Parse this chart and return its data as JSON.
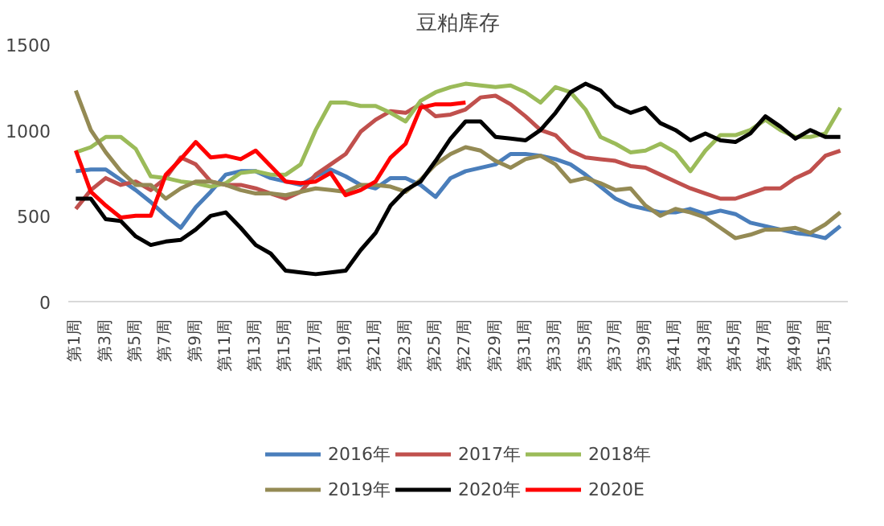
{
  "chart_data": {
    "type": "line",
    "title": "豆粕库存",
    "categories": [
      "第1周",
      null,
      "第3周",
      null,
      "第5周",
      null,
      "第7周",
      null,
      "第9周",
      null,
      "第11周",
      null,
      "第13周",
      null,
      "第15周",
      null,
      "第17周",
      null,
      "第19周",
      null,
      "第21周",
      null,
      "第23周",
      null,
      "第25周",
      null,
      "第27周",
      null,
      "第29周",
      null,
      "第31周",
      null,
      "第33周",
      null,
      "第35周",
      null,
      "第37周",
      null,
      "第39周",
      null,
      "第41周",
      null,
      "第43周",
      null,
      "第45周",
      null,
      "第47周",
      null,
      "第49周",
      null,
      "第51周",
      null
    ],
    "ylim": [
      0,
      1500
    ],
    "yticks": [
      0,
      500,
      1000,
      1500
    ],
    "grid": false,
    "legend": "bottom",
    "marker": "none",
    "line_style": "solid",
    "series": [
      {
        "name": "2016年",
        "color": "#4a7ebb",
        "values": [
          760,
          770,
          770,
          710,
          650,
          580,
          500,
          430,
          550,
          640,
          740,
          760,
          760,
          720,
          700,
          680,
          730,
          770,
          730,
          680,
          660,
          720,
          720,
          680,
          610,
          720,
          760,
          780,
          800,
          860,
          860,
          850,
          830,
          800,
          740,
          670,
          600,
          560,
          540,
          520,
          520,
          540,
          510,
          530,
          510,
          460,
          440,
          420,
          400,
          390,
          370,
          440
        ]
      },
      {
        "name": "2017年",
        "color": "#c0504d",
        "values": [
          540,
          650,
          720,
          680,
          700,
          650,
          720,
          840,
          800,
          700,
          680,
          680,
          660,
          630,
          600,
          640,
          740,
          800,
          860,
          990,
          1060,
          1110,
          1100,
          1150,
          1080,
          1090,
          1120,
          1190,
          1200,
          1150,
          1080,
          1000,
          970,
          880,
          840,
          830,
          820,
          790,
          780,
          740,
          700,
          660,
          630,
          600,
          600,
          630,
          660,
          660,
          720,
          760,
          850,
          880
        ]
      },
      {
        "name": "2018年",
        "color": "#9bbb59",
        "values": [
          870,
          900,
          960,
          960,
          890,
          730,
          720,
          700,
          690,
          670,
          690,
          750,
          760,
          740,
          740,
          800,
          1000,
          1160,
          1160,
          1140,
          1140,
          1100,
          1050,
          1170,
          1220,
          1250,
          1270,
          1260,
          1250,
          1260,
          1220,
          1160,
          1250,
          1220,
          1120,
          960,
          920,
          870,
          880,
          920,
          870,
          760,
          880,
          970,
          970,
          1000,
          1060,
          1000,
          960,
          960,
          980,
          1130
        ]
      },
      {
        "name": "2019年",
        "color": "#948a54",
        "values": [
          1230,
          1000,
          870,
          760,
          680,
          680,
          600,
          660,
          700,
          700,
          680,
          650,
          630,
          630,
          620,
          640,
          660,
          650,
          640,
          680,
          680,
          670,
          640,
          710,
          800,
          860,
          900,
          880,
          820,
          780,
          830,
          850,
          800,
          700,
          720,
          690,
          650,
          660,
          560,
          500,
          540,
          520,
          490,
          430,
          370,
          390,
          420,
          420,
          430,
          400,
          450,
          520
        ]
      },
      {
        "name": "2020年",
        "color": "#000000",
        "values": [
          600,
          600,
          480,
          470,
          380,
          330,
          350,
          360,
          420,
          500,
          520,
          430,
          330,
          280,
          180,
          170,
          160,
          170,
          180,
          300,
          400,
          560,
          650,
          700,
          820,
          950,
          1050,
          1050,
          960,
          950,
          940,
          1000,
          1100,
          1220,
          1270,
          1230,
          1140,
          1100,
          1130,
          1040,
          1000,
          940,
          980,
          940,
          930,
          980,
          1080,
          1020,
          950,
          1000,
          960,
          960
        ]
      },
      {
        "name": "2020E",
        "color": "#ff0000",
        "values": [
          880,
          640,
          560,
          490,
          500,
          500,
          740,
          830,
          930,
          840,
          850,
          830,
          880,
          790,
          700,
          690,
          700,
          750,
          620,
          650,
          700,
          840,
          920,
          1130,
          1150,
          1150,
          1160,
          null,
          null,
          null,
          null,
          null,
          null,
          null,
          null,
          null,
          null,
          null,
          null,
          null,
          null,
          null,
          null,
          null,
          null,
          null,
          null,
          null,
          null,
          null,
          null,
          null
        ]
      }
    ]
  }
}
